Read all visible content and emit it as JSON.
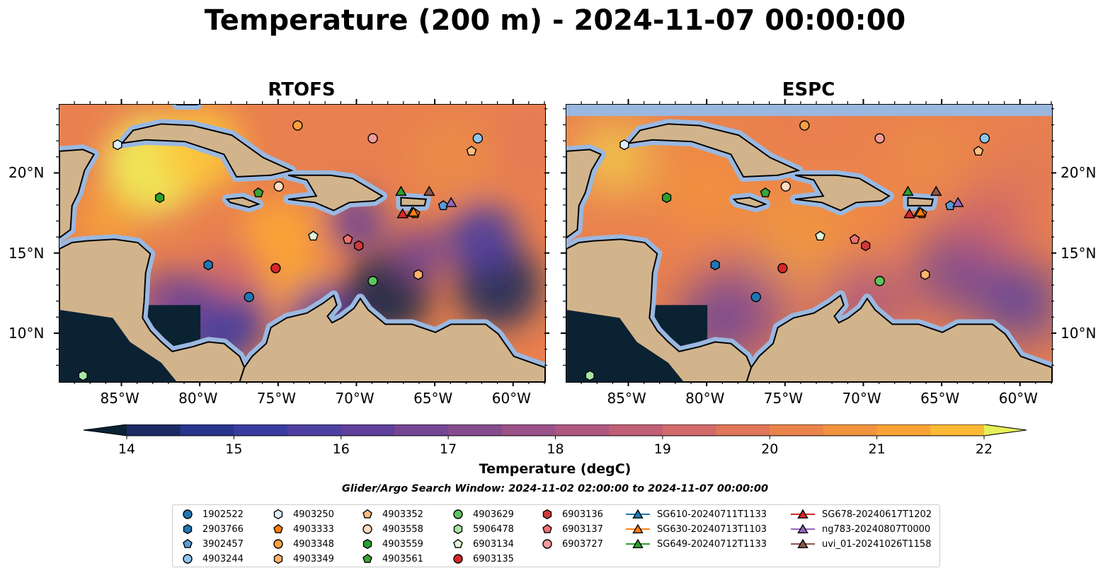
{
  "title": "Temperature (200 m) - 2024-11-07 00:00:00",
  "panels": [
    {
      "title": "RTOFS",
      "model": "rtofs"
    },
    {
      "title": "ESPC",
      "model": "espc"
    }
  ],
  "map_extent": {
    "lon_min": -89,
    "lon_max": -58,
    "lat_min": 7,
    "lat_max": 24.3
  },
  "lon_ticks": [
    {
      "value": -85,
      "label": "85°W"
    },
    {
      "value": -80,
      "label": "80°W"
    },
    {
      "value": -75,
      "label": "75°W"
    },
    {
      "value": -70,
      "label": "70°W"
    },
    {
      "value": -65,
      "label": "65°W"
    },
    {
      "value": -60,
      "label": "60°W"
    }
  ],
  "lat_ticks": [
    {
      "value": 20,
      "label": "20°N"
    },
    {
      "value": 15,
      "label": "15°N"
    },
    {
      "value": 10,
      "label": "10°N"
    }
  ],
  "colorbar": {
    "label": "Temperature (degC)",
    "min": 14,
    "max": 22,
    "step": 0.5,
    "ticks": [
      "14",
      "15",
      "16",
      "17",
      "18",
      "19",
      "20",
      "21",
      "22"
    ],
    "colors": [
      "#0f1f3d",
      "#1b2a63",
      "#28358c",
      "#3a3b9f",
      "#4e3fa2",
      "#603f9a",
      "#744593",
      "#864b8d",
      "#9a5187",
      "#ad5780",
      "#c05f76",
      "#d26a69",
      "#e0765a",
      "#ea844a",
      "#f2933d",
      "#f8a435",
      "#fcb936",
      "#fdd140",
      "#f4e855"
    ],
    "under_color": "#0b2233",
    "over_color": "#e6f05a"
  },
  "land_color": "#d2b48c",
  "shelf_color": "#9ab8e0",
  "search_window": "Glider/Argo Search Window: 2024-11-02 02:00:00 to 2024-11-07 00:00:00",
  "legend": [
    {
      "label": "1902522",
      "marker": "circle",
      "color": "#1f77b4",
      "lon": -76.9,
      "lat": 12.3
    },
    {
      "label": "2903766",
      "marker": "hexagon",
      "color": "#1f77b4",
      "lon": -79.5,
      "lat": 14.3
    },
    {
      "label": "3902457",
      "marker": "pentagon",
      "color": "#5b9bd5",
      "lon": -64.5,
      "lat": 18.0
    },
    {
      "label": "4903244",
      "marker": "circle",
      "color": "#8ec6ee",
      "lon": -62.3,
      "lat": 22.2
    },
    {
      "label": "4903250",
      "marker": "hexagon",
      "color": "#dceefa",
      "lon": -85.3,
      "lat": 21.8
    },
    {
      "label": "4903333",
      "marker": "pentagon",
      "color": "#ff7f0e",
      "lon": -66.3,
      "lat": 17.5
    },
    {
      "label": "4903348",
      "marker": "circle",
      "color": "#ff9f40",
      "lon": -73.8,
      "lat": 23.0
    },
    {
      "label": "4903349",
      "marker": "hexagon",
      "color": "#ffb36b",
      "lon": -66.1,
      "lat": 13.7
    },
    {
      "label": "4903352",
      "marker": "pentagon",
      "color": "#ffbe7d",
      "lon": -62.7,
      "lat": 21.4
    },
    {
      "label": "4903558",
      "marker": "circle",
      "color": "#ffdcc1",
      "lon": -75.0,
      "lat": 19.2
    },
    {
      "label": "4903559",
      "marker": "hexagon",
      "color": "#2ca02c",
      "lon": -82.6,
      "lat": 18.5
    },
    {
      "label": "4903561",
      "marker": "pentagon",
      "color": "#3aa33a",
      "lon": -76.3,
      "lat": 18.8
    },
    {
      "label": "4903629",
      "marker": "circle",
      "color": "#5cc45c",
      "lon": -69.0,
      "lat": 13.3
    },
    {
      "label": "5906478",
      "marker": "hexagon",
      "color": "#a6e6a6",
      "lon": -87.5,
      "lat": 7.4
    },
    {
      "label": "6903134",
      "marker": "pentagon",
      "color": "#dff5d5",
      "lon": -72.8,
      "lat": 16.1
    },
    {
      "label": "6903135",
      "marker": "circle",
      "color": "#d62728",
      "lon": -75.2,
      "lat": 14.1
    },
    {
      "label": "6903136",
      "marker": "hexagon",
      "color": "#d0393a",
      "lon": -69.9,
      "lat": 15.5
    },
    {
      "label": "6903137",
      "marker": "pentagon",
      "color": "#f07070",
      "lon": -70.6,
      "lat": 15.9
    },
    {
      "label": "6903727",
      "marker": "circle",
      "color": "#f59a9a",
      "lon": -69.0,
      "lat": 22.2
    },
    {
      "label": "SG610-20240711T1133",
      "marker": "triangle",
      "color": "#1f77b4",
      "line": true,
      "lon": -66.5,
      "lat": 17.6
    },
    {
      "label": "SG630-20240713T1103",
      "marker": "triangle",
      "color": "#ff7f0e",
      "line": true,
      "lon": -66.4,
      "lat": 17.6
    },
    {
      "label": "SG649-20240712T1133",
      "marker": "triangle",
      "color": "#2ca02c",
      "line": true,
      "lon": -67.2,
      "lat": 18.9
    },
    {
      "label": "SG678-20240617T1202",
      "marker": "triangle",
      "color": "#d62728",
      "line": true,
      "lon": -67.1,
      "lat": 17.5
    },
    {
      "label": "ng783-20240807T0000",
      "marker": "triangle",
      "color": "#9467bd",
      "line": true,
      "lon": -64.0,
      "lat": 18.2
    },
    {
      "label": "uvi_01-20241026T1158",
      "marker": "triangle",
      "color": "#8c564b",
      "line": true,
      "lon": -65.4,
      "lat": 18.9
    }
  ]
}
